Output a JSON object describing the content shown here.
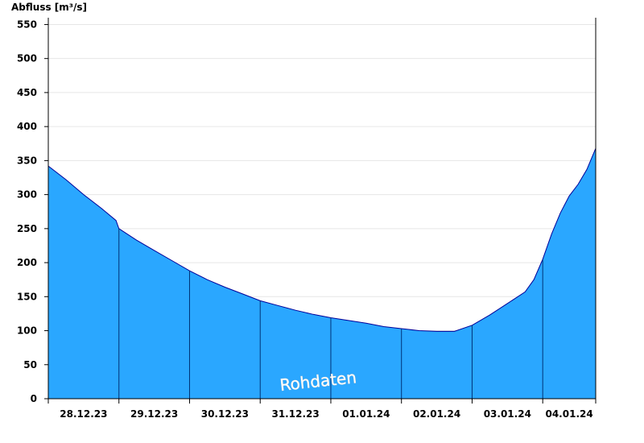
{
  "chart_data": {
    "type": "area",
    "ylabel": "Abfluss [m³/s]",
    "ylim": [
      0,
      560
    ],
    "yticks": [
      0,
      50,
      100,
      150,
      200,
      250,
      300,
      350,
      400,
      450,
      500,
      550
    ],
    "xlim": [
      "2023-12-27T18:00",
      "2024-01-04T12:00"
    ],
    "date_labels": [
      "28.12.23",
      "29.12.23",
      "30.12.23",
      "31.12.23",
      "01.01.24",
      "02.01.24",
      "03.01.24",
      "04.01.24"
    ],
    "day_boundaries": [
      "2023-12-28T18:00",
      "2023-12-29T18:00",
      "2023-12-30T18:00",
      "2023-12-31T18:00",
      "2024-01-01T18:00",
      "2024-01-02T18:00",
      "2024-01-03T18:00"
    ],
    "grid": true,
    "annotation": "Rohdaten",
    "colors": {
      "fill": "#2aa7ff",
      "line": "#000099",
      "grid": "#e6e6e6",
      "boundary": "#003377"
    },
    "series": [
      {
        "values": [
          [
            "2023-12-27T18:00",
            342
          ],
          [
            "2023-12-28T00:00",
            322
          ],
          [
            "2023-12-28T06:00",
            300
          ],
          [
            "2023-12-28T12:00",
            280
          ],
          [
            "2023-12-28T17:00",
            262
          ],
          [
            "2023-12-28T18:00",
            250
          ],
          [
            "2023-12-29T00:00",
            233
          ],
          [
            "2023-12-29T06:00",
            218
          ],
          [
            "2023-12-29T12:00",
            203
          ],
          [
            "2023-12-29T18:00",
            188
          ],
          [
            "2023-12-30T00:00",
            175
          ],
          [
            "2023-12-30T06:00",
            164
          ],
          [
            "2023-12-30T12:00",
            154
          ],
          [
            "2023-12-30T18:00",
            144
          ],
          [
            "2023-12-31T00:00",
            137
          ],
          [
            "2023-12-31T06:00",
            130
          ],
          [
            "2023-12-31T12:00",
            124
          ],
          [
            "2023-12-31T18:00",
            119
          ],
          [
            "2024-01-01T00:00",
            115
          ],
          [
            "2024-01-01T06:00",
            111
          ],
          [
            "2024-01-01T12:00",
            106
          ],
          [
            "2024-01-01T18:00",
            103
          ],
          [
            "2024-01-02T00:00",
            100
          ],
          [
            "2024-01-02T06:00",
            99
          ],
          [
            "2024-01-02T12:00",
            99
          ],
          [
            "2024-01-02T18:00",
            108
          ],
          [
            "2024-01-03T00:00",
            123
          ],
          [
            "2024-01-03T06:00",
            140
          ],
          [
            "2024-01-03T12:00",
            157
          ],
          [
            "2024-01-03T15:00",
            175
          ],
          [
            "2024-01-03T18:00",
            205
          ],
          [
            "2024-01-03T21:00",
            242
          ],
          [
            "2024-01-04T00:00",
            273
          ],
          [
            "2024-01-04T03:00",
            298
          ],
          [
            "2024-01-04T06:00",
            315
          ],
          [
            "2024-01-04T09:00",
            337
          ],
          [
            "2024-01-04T12:00",
            368
          ]
        ]
      }
    ]
  }
}
